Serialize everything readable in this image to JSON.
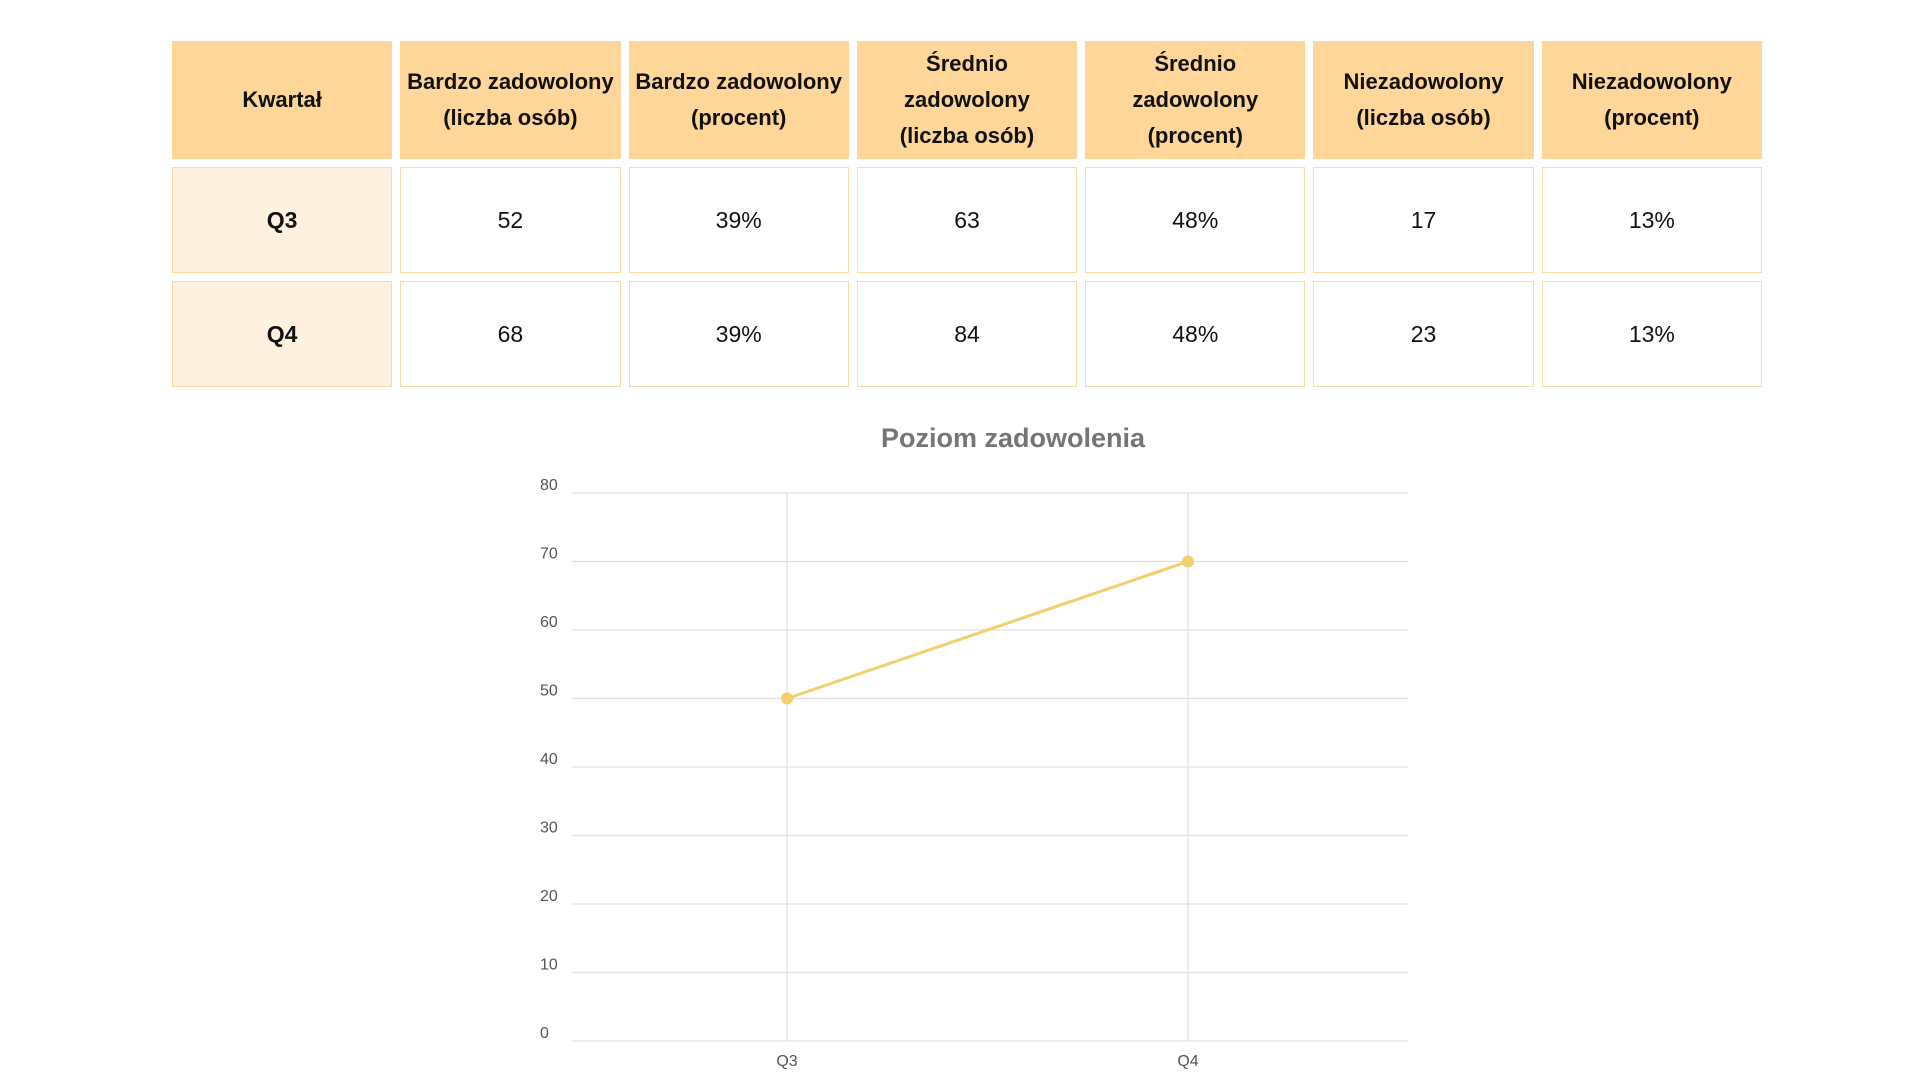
{
  "table": {
    "headers": [
      [
        "Kwartał"
      ],
      [
        "Bardzo zadowolony",
        "(liczba osób)"
      ],
      [
        "Bardzo zadowolony",
        "(procent)"
      ],
      [
        "Średnio zadowolony",
        "(liczba osób)"
      ],
      [
        "Średnio zadowolony",
        "(procent)"
      ],
      [
        "Niezadowolony",
        "(liczba osób)"
      ],
      [
        "Niezadowolony",
        "(procent)"
      ]
    ],
    "rows": [
      [
        "Q3",
        "52",
        "39%",
        "63",
        "48%",
        "17",
        "13%"
      ],
      [
        "Q4",
        "68",
        "39%",
        "84",
        "48%",
        "23",
        "13%"
      ]
    ],
    "colors": {
      "header_bg": "#ffd699",
      "row_head_bg": "#fff1df",
      "cell_border": "#ffd9a3"
    }
  },
  "chart_data": {
    "type": "line",
    "title": "Poziom zadowolenia",
    "xlabel": "",
    "ylabel": "",
    "categories": [
      "Q3",
      "Q4"
    ],
    "series": [
      {
        "values": [
          50,
          70
        ],
        "color": "#f2cf6b"
      }
    ],
    "ylim": [
      0,
      80
    ],
    "yticks": [
      0,
      10,
      20,
      30,
      40,
      50,
      60,
      70,
      80
    ],
    "grid": true,
    "legend": "none",
    "grid_color": "#e0e0e0"
  }
}
